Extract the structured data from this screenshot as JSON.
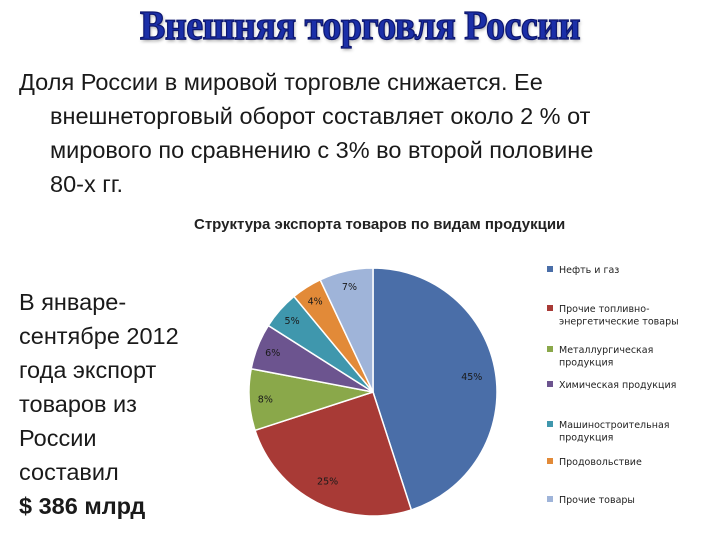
{
  "slide": {
    "title": "Внешняя торговля России",
    "intro_lines": [
      "Доля России в мировой торговле снижается. Ее",
      "внешнеторговый оборот составляет около 2 % от",
      "мирового по сравнению с 3% во второй половине",
      "80-х гг."
    ],
    "side_lines": [
      "В январе-",
      "сентябре 2012",
      "года экспорт",
      "товаров из",
      "России",
      "составил"
    ],
    "side_amount": "$ 386 млрд"
  },
  "chart_data": {
    "type": "pie",
    "title": "Структура экспорта товаров по видам продукции",
    "legend_position": "right",
    "slices": [
      {
        "name": "Нефть и газ",
        "legend_lines": [
          "Нефть и газ"
        ],
        "value": 45,
        "label": "45%",
        "color": "#4a6ea8"
      },
      {
        "name": "Прочие топливно-энергетические товары",
        "legend_lines": [
          "Прочие топливно-",
          "энергетические товары"
        ],
        "value": 25,
        "label": "25%",
        "color": "#a83a36"
      },
      {
        "name": "Металлургическая продукция",
        "legend_lines": [
          "Металлургическая",
          "продукция"
        ],
        "value": 8,
        "label": "8%",
        "color": "#8aa84a"
      },
      {
        "name": "Химическая продукция",
        "legend_lines": [
          "Химическая продукция"
        ],
        "value": 6,
        "label": "6%",
        "color": "#6c548f"
      },
      {
        "name": "Машиностроительная продукция",
        "legend_lines": [
          "Машиностроительная",
          "продукция"
        ],
        "value": 5,
        "label": "5%",
        "color": "#3f97ad"
      },
      {
        "name": "Продовольствие",
        "legend_lines": [
          "Продовольствие"
        ],
        "value": 4,
        "label": "4%",
        "color": "#e28a38"
      },
      {
        "name": "Прочие товары",
        "legend_lines": [
          "Прочие товары"
        ],
        "value": 7,
        "label": "7%",
        "color": "#9fb4d9"
      }
    ]
  }
}
